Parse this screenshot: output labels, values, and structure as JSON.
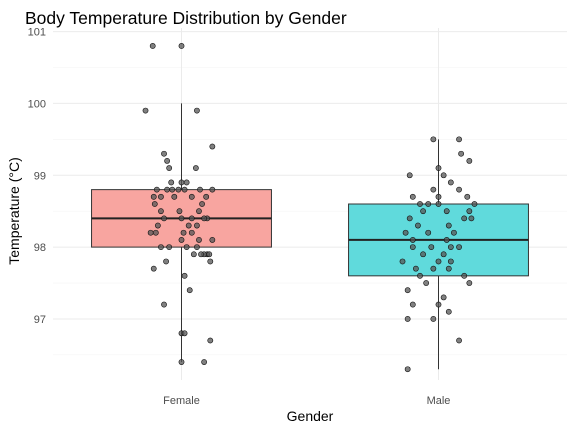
{
  "chart_data": {
    "type": "boxplot",
    "title": "Body Temperature Distribution by Gender",
    "xlabel": "Gender",
    "ylabel": "Temperature (°C)",
    "ylim": [
      96.15,
      101.05
    ],
    "yticks": [
      97,
      98,
      99,
      100,
      101
    ],
    "grid": true,
    "legend": "none",
    "categories": [
      "Female",
      "Male"
    ],
    "colors": {
      "Female": "#f8a5a0",
      "Male": "#60dadc",
      "point": "#555555"
    },
    "boxes": [
      {
        "category": "Female",
        "min": 96.4,
        "q1": 98.0,
        "median": 98.4,
        "q3": 98.8,
        "max": 100.0
      },
      {
        "category": "Male",
        "min": 96.3,
        "q1": 97.6,
        "median": 98.1,
        "q3": 98.6,
        "max": 99.5
      }
    ],
    "points": {
      "Female": [
        [
          -0.28,
          100.8
        ],
        [
          0.0,
          100.8
        ],
        [
          -0.35,
          99.9
        ],
        [
          0.15,
          99.9
        ],
        [
          0.3,
          99.4
        ],
        [
          -0.17,
          99.3
        ],
        [
          -0.14,
          99.2
        ],
        [
          -0.12,
          99.1
        ],
        [
          0.14,
          99.1
        ],
        [
          -0.1,
          98.9
        ],
        [
          0.05,
          98.9
        ],
        [
          0.0,
          98.9
        ],
        [
          -0.24,
          98.8
        ],
        [
          -0.14,
          98.8
        ],
        [
          -0.09,
          98.8
        ],
        [
          -0.03,
          98.8
        ],
        [
          0.03,
          98.8
        ],
        [
          0.18,
          98.8
        ],
        [
          0.3,
          98.8
        ],
        [
          -0.27,
          98.7
        ],
        [
          -0.2,
          98.7
        ],
        [
          -0.07,
          98.7
        ],
        [
          0.1,
          98.7
        ],
        [
          0.24,
          98.7
        ],
        [
          0.2,
          98.6
        ],
        [
          -0.26,
          98.6
        ],
        [
          -0.2,
          98.5
        ],
        [
          -0.02,
          98.5
        ],
        [
          0.17,
          98.5
        ],
        [
          0.25,
          98.4
        ],
        [
          -0.17,
          98.4
        ],
        [
          0.0,
          98.4
        ],
        [
          0.1,
          98.4
        ],
        [
          0.22,
          98.4
        ],
        [
          -0.23,
          98.3
        ],
        [
          0.07,
          98.3
        ],
        [
          0.15,
          98.3
        ],
        [
          -0.3,
          98.2
        ],
        [
          -0.25,
          98.2
        ],
        [
          0.02,
          98.2
        ],
        [
          0.1,
          98.2
        ],
        [
          0.0,
          98.1
        ],
        [
          0.17,
          98.1
        ],
        [
          0.3,
          98.1
        ],
        [
          -0.2,
          98.0
        ],
        [
          -0.12,
          98.0
        ],
        [
          0.05,
          98.0
        ],
        [
          0.15,
          98.0
        ],
        [
          0.25,
          97.9
        ],
        [
          0.22,
          97.9
        ],
        [
          0.27,
          97.9
        ],
        [
          0.12,
          97.9
        ],
        [
          0.19,
          97.9
        ],
        [
          0.28,
          97.8
        ],
        [
          -0.15,
          97.8
        ],
        [
          -0.27,
          97.7
        ],
        [
          0.03,
          97.6
        ],
        [
          0.08,
          97.4
        ],
        [
          -0.17,
          97.2
        ],
        [
          0.0,
          96.8
        ],
        [
          0.03,
          96.8
        ],
        [
          0.28,
          96.7
        ],
        [
          0.0,
          96.4
        ],
        [
          0.22,
          96.4
        ]
      ],
      "Male": [
        [
          0.2,
          99.5
        ],
        [
          -0.05,
          99.5
        ],
        [
          0.22,
          99.3
        ],
        [
          0.3,
          99.2
        ],
        [
          0.0,
          99.1
        ],
        [
          0.05,
          99.0
        ],
        [
          -0.28,
          99.0
        ],
        [
          0.12,
          98.9
        ],
        [
          -0.05,
          98.8
        ],
        [
          0.2,
          98.8
        ],
        [
          -0.25,
          98.7
        ],
        [
          0.28,
          98.7
        ],
        [
          0.0,
          98.7
        ],
        [
          -0.1,
          98.6
        ],
        [
          0.0,
          98.6
        ],
        [
          -0.18,
          98.6
        ],
        [
          0.35,
          98.6
        ],
        [
          -0.15,
          98.5
        ],
        [
          0.08,
          98.5
        ],
        [
          0.3,
          98.5
        ],
        [
          0.25,
          98.4
        ],
        [
          -0.28,
          98.4
        ],
        [
          0.32,
          98.4
        ],
        [
          -0.2,
          98.3
        ],
        [
          0.1,
          98.3
        ],
        [
          -0.32,
          98.2
        ],
        [
          -0.1,
          98.2
        ],
        [
          0.15,
          98.2
        ],
        [
          -0.25,
          98.1
        ],
        [
          0.08,
          98.1
        ],
        [
          0.12,
          98.0
        ],
        [
          -0.25,
          98.0
        ],
        [
          -0.07,
          98.0
        ],
        [
          0.2,
          98.0
        ],
        [
          -0.15,
          97.9
        ],
        [
          0.05,
          97.9
        ],
        [
          -0.35,
          97.8
        ],
        [
          0.0,
          97.8
        ],
        [
          0.12,
          97.8
        ],
        [
          -0.22,
          97.7
        ],
        [
          0.1,
          97.7
        ],
        [
          -0.05,
          97.7
        ],
        [
          -0.18,
          97.6
        ],
        [
          0.25,
          97.6
        ],
        [
          0.3,
          97.5
        ],
        [
          -0.12,
          97.5
        ],
        [
          -0.3,
          97.4
        ],
        [
          0.05,
          97.3
        ],
        [
          -0.25,
          97.2
        ],
        [
          0.0,
          97.2
        ],
        [
          0.1,
          97.1
        ],
        [
          -0.3,
          97.0
        ],
        [
          -0.05,
          97.0
        ],
        [
          0.2,
          96.7
        ],
        [
          -0.3,
          96.3
        ]
      ]
    }
  }
}
